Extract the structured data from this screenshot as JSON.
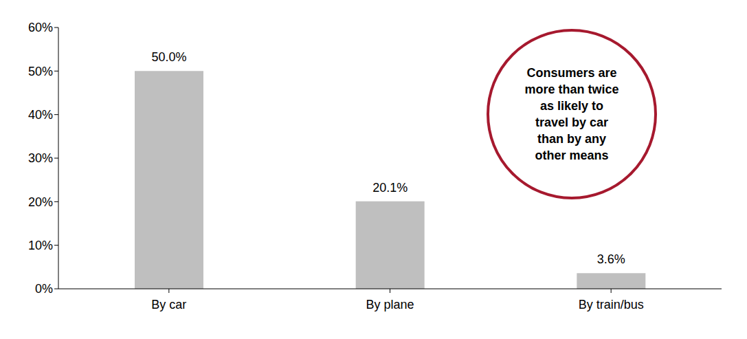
{
  "chart_data": {
    "type": "bar",
    "categories": [
      "By car",
      "By plane",
      "By train/bus"
    ],
    "values": [
      50.0,
      20.1,
      3.6
    ],
    "value_labels": [
      "50.0%",
      "20.1%",
      "3.6%"
    ],
    "color": "#bfbfbf",
    "ylim": [
      0,
      60
    ],
    "yticks": [
      {
        "value": 0,
        "label": "0%"
      },
      {
        "value": 10,
        "label": "10%"
      },
      {
        "value": 20,
        "label": "20%"
      },
      {
        "value": 30,
        "label": "30%"
      },
      {
        "value": 40,
        "label": "40%"
      },
      {
        "value": 50,
        "label": "50%"
      },
      {
        "value": 60,
        "label": "60%"
      }
    ],
    "grid": false,
    "data_labels": true,
    "annotation": [
      "Consumers are",
      "more than twice",
      "as likely to",
      "travel by car",
      "than by any",
      "other means"
    ]
  }
}
